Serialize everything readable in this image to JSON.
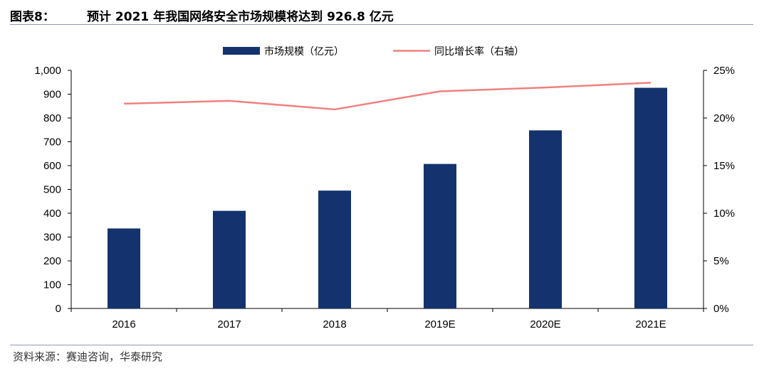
{
  "header": {
    "figure_label": "图表8：",
    "title": "预计 2021 年我国网络安全市场规模将达到 926.8 亿元"
  },
  "source": "资料来源：赛迪咨询，华泰研究",
  "colors": {
    "bar": "#14336e",
    "line": "#f08080",
    "rule": "#8a9ab8"
  },
  "chart_data": {
    "type": "bar",
    "categories": [
      "2016",
      "2017",
      "2018",
      "2019E",
      "2020E",
      "2021E"
    ],
    "series": [
      {
        "name": "市场规模（亿元）",
        "type": "bar",
        "axis": "left",
        "values": [
          336,
          410,
          495,
          607,
          748,
          926.8
        ]
      },
      {
        "name": "同比增长率（右轴）",
        "type": "line",
        "axis": "right",
        "values": [
          21.5,
          21.8,
          20.9,
          22.8,
          23.2,
          23.7
        ]
      }
    ],
    "y_left": {
      "ylim": [
        0,
        1000
      ],
      "ticks": [
        "0",
        "100",
        "200",
        "300",
        "400",
        "500",
        "600",
        "700",
        "800",
        "900",
        "1,000"
      ]
    },
    "y_right": {
      "ylim": [
        0,
        25
      ],
      "ticks": [
        "0%",
        "5%",
        "10%",
        "15%",
        "20%",
        "25%"
      ]
    },
    "legend": "top-center",
    "grid": false
  }
}
